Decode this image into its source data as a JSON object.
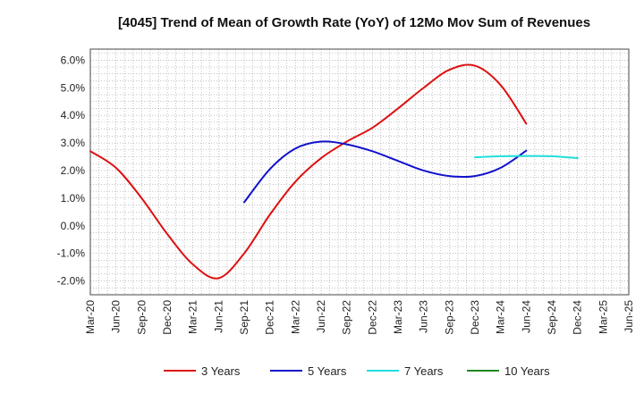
{
  "chart_data": {
    "type": "line",
    "title": "[4045]  Trend of Mean of Growth Rate (YoY) of 12Mo Mov Sum of Revenues",
    "xlabel": "",
    "ylabel": "",
    "ylim": [
      -2.5,
      6.4
    ],
    "y_ticks": [
      -2.0,
      -1.0,
      0.0,
      1.0,
      2.0,
      3.0,
      4.0,
      5.0,
      6.0
    ],
    "y_tick_labels": [
      "-2.0%",
      "-1.0%",
      "0.0%",
      "1.0%",
      "2.0%",
      "3.0%",
      "4.0%",
      "5.0%",
      "6.0%"
    ],
    "x_ticks": [
      "Mar-20",
      "Jun-20",
      "Sep-20",
      "Dec-20",
      "Mar-21",
      "Jun-21",
      "Sep-21",
      "Dec-21",
      "Mar-22",
      "Jun-22",
      "Sep-22",
      "Dec-22",
      "Mar-23",
      "Jun-23",
      "Sep-23",
      "Dec-23",
      "Mar-24",
      "Jun-24",
      "Sep-24",
      "Dec-24",
      "Mar-25",
      "Jun-25"
    ],
    "grid": true,
    "legend_position": "bottom",
    "series": [
      {
        "name": "3 Years",
        "color": "#dd1111",
        "start_index": 0,
        "values": [
          2.7,
          2.1,
          1.0,
          -0.3,
          -1.4,
          -1.9,
          -1.0,
          0.4,
          1.6,
          2.45,
          3.05,
          3.55,
          4.25,
          5.0,
          5.65,
          5.8,
          5.1,
          3.7
        ]
      },
      {
        "name": "5 Years",
        "color": "#1111cc",
        "start_index": 6,
        "values": [
          0.85,
          2.05,
          2.8,
          3.05,
          2.95,
          2.7,
          2.35,
          2.0,
          1.8,
          1.8,
          2.1,
          2.72
        ]
      },
      {
        "name": "7 Years",
        "color": "#22dddd",
        "start_index": 15,
        "values": [
          2.48,
          2.52,
          2.53,
          2.52,
          2.45
        ]
      },
      {
        "name": "10 Years",
        "color": "#228822",
        "start_index": 0,
        "values": []
      }
    ]
  }
}
